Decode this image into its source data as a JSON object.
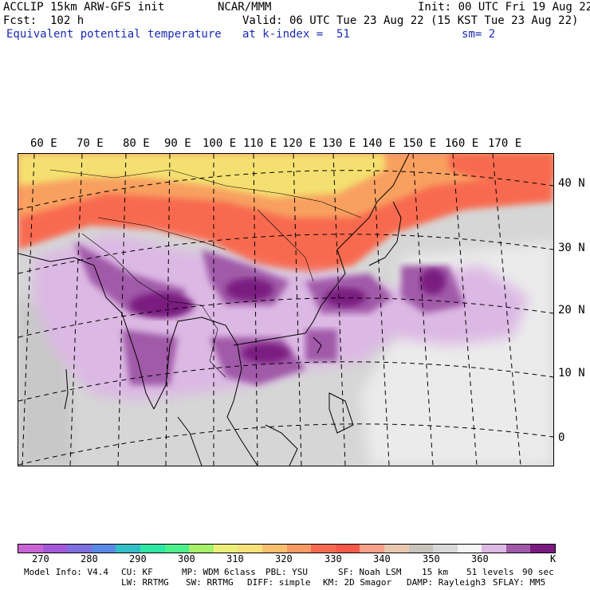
{
  "header": {
    "model": "ACCLIP 15km ARW-GFS init",
    "org": "NCAR/MMM",
    "init": "Init: 00 UTC Fri 19 Aug 22",
    "fcst": "Fcst:  102 h",
    "valid": "Valid: 06 UTC Tue 23 Aug 22 (15 KST Tue 23 Aug 22)",
    "field": "Equivalent potential temperature",
    "level": "at k-index =  51",
    "smooth": "sm= 2"
  },
  "map": {
    "lon_labels": [
      "60 E",
      "70 E",
      "80 E",
      "90 E",
      "100 E",
      "110 E",
      "120 E",
      "130 E",
      "140 E",
      "150 E",
      "160 E",
      "170 E"
    ],
    "lat_labels": [
      "40 N",
      "30 N",
      "20 N",
      "10 N",
      "0"
    ]
  },
  "colorbar": {
    "colors": [
      "#c964d6",
      "#a45ad8",
      "#7f6ee0",
      "#5a8ae6",
      "#33bfc8",
      "#2ee6a6",
      "#4cf08a",
      "#a6f06a",
      "#ecf07a",
      "#f8e07a",
      "#f8c070",
      "#f89a64",
      "#f86a50",
      "#f85a4a",
      "#f8a088",
      "#e8c8b0",
      "#c8c4bc",
      "#d8d8d8",
      "#f4f4f4",
      "#dcb8e4",
      "#a05aa8",
      "#7a1a80"
    ],
    "labels": [
      "270",
      "280",
      "290",
      "300",
      "310",
      "320",
      "330",
      "340",
      "350",
      "360"
    ],
    "unit": "K"
  },
  "footer": {
    "model_info": "Model Info: V4.4",
    "cu": "CU: KF",
    "mp": "MP: WDM 6class",
    "pbl": "PBL: YSU",
    "sf": "SF: Noah LSM",
    "res": "15 km",
    "levels": "51 levels",
    "dt": "90 sec",
    "lw": "LW: RRTMG",
    "sw": "SW: RRTMG",
    "diff": "DIFF: simple",
    "km": "KM: 2D Smagor",
    "damp": "DAMP: Rayleigh3",
    "sflay": "SFLAY: MM5"
  }
}
